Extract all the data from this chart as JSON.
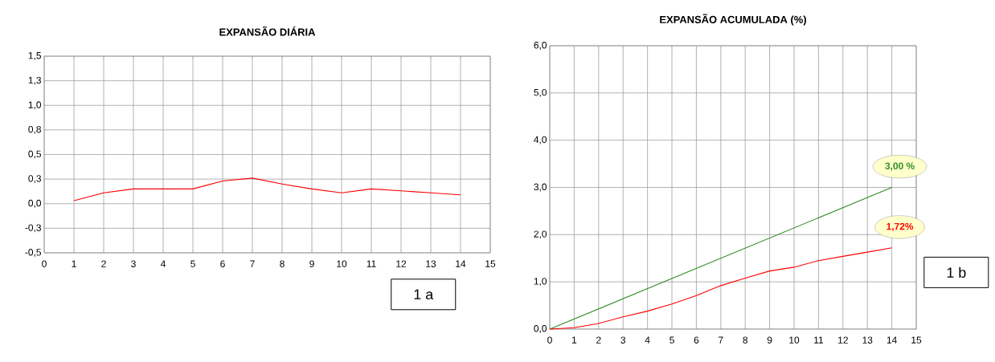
{
  "chart_data": [
    {
      "type": "line",
      "title": "EXPANSÃO DIÁRIA",
      "x": [
        1,
        2,
        3,
        4,
        5,
        6,
        7,
        8,
        9,
        10,
        11,
        12,
        13,
        14
      ],
      "series": [
        {
          "color": "#ff0000",
          "values": [
            0.03,
            0.11,
            0.15,
            0.15,
            0.15,
            0.23,
            0.26,
            0.2,
            0.15,
            0.11,
            0.15,
            0.13,
            0.11,
            0.09
          ]
        }
      ],
      "xlim": [
        0,
        15
      ],
      "xticks": [
        0,
        1,
        2,
        3,
        4,
        5,
        6,
        7,
        8,
        9,
        10,
        11,
        12,
        13,
        14,
        15
      ],
      "ylim": [
        -0.5,
        1.5
      ],
      "yticks": [
        {
          "value": -0.5,
          "label": "-0,5"
        },
        {
          "value": -0.25,
          "label": "-0,3"
        },
        {
          "value": 0,
          "label": "0,0"
        },
        {
          "value": 0.25,
          "label": "0,3"
        },
        {
          "value": 0.5,
          "label": "0,5"
        },
        {
          "value": 0.75,
          "label": "0,8"
        },
        {
          "value": 1.0,
          "label": "1,0"
        },
        {
          "value": 1.25,
          "label": "1,3"
        },
        {
          "value": 1.5,
          "label": "1,5"
        }
      ],
      "grid": true,
      "annotations": [
        "1 a"
      ]
    },
    {
      "type": "line",
      "title": "EXPANSÃO ACUMULADA (%)",
      "series": [
        {
          "color": "#2e8b22",
          "x": [
            0,
            14
          ],
          "values": [
            0,
            3.0
          ]
        },
        {
          "color": "#ff0000",
          "x": [
            0,
            1,
            2,
            3,
            4,
            5,
            6,
            7,
            8,
            9,
            10,
            11,
            12,
            13,
            14
          ],
          "values": [
            0,
            0.03,
            0.12,
            0.26,
            0.38,
            0.53,
            0.71,
            0.92,
            1.08,
            1.23,
            1.31,
            1.45,
            1.54,
            1.63,
            1.72
          ]
        }
      ],
      "xlim": [
        0,
        15
      ],
      "xticks": [
        0,
        1,
        2,
        3,
        4,
        5,
        6,
        7,
        8,
        9,
        10,
        11,
        12,
        13,
        14,
        15
      ],
      "ylim": [
        0,
        6
      ],
      "yticks": [
        {
          "value": 0,
          "label": "0,0"
        },
        {
          "value": 1,
          "label": "1,0"
        },
        {
          "value": 2,
          "label": "2,0"
        },
        {
          "value": 3,
          "label": "3,0"
        },
        {
          "value": 4,
          "label": "4,0"
        },
        {
          "value": 5,
          "label": "5,0"
        },
        {
          "value": 6,
          "label": "6,0"
        }
      ],
      "grid": true,
      "annotations": [
        {
          "text": "3,00 %",
          "x": 14,
          "y": 3.0
        },
        {
          "text": "1,72%",
          "x": 14,
          "y": 1.72
        },
        "1 b"
      ]
    }
  ]
}
